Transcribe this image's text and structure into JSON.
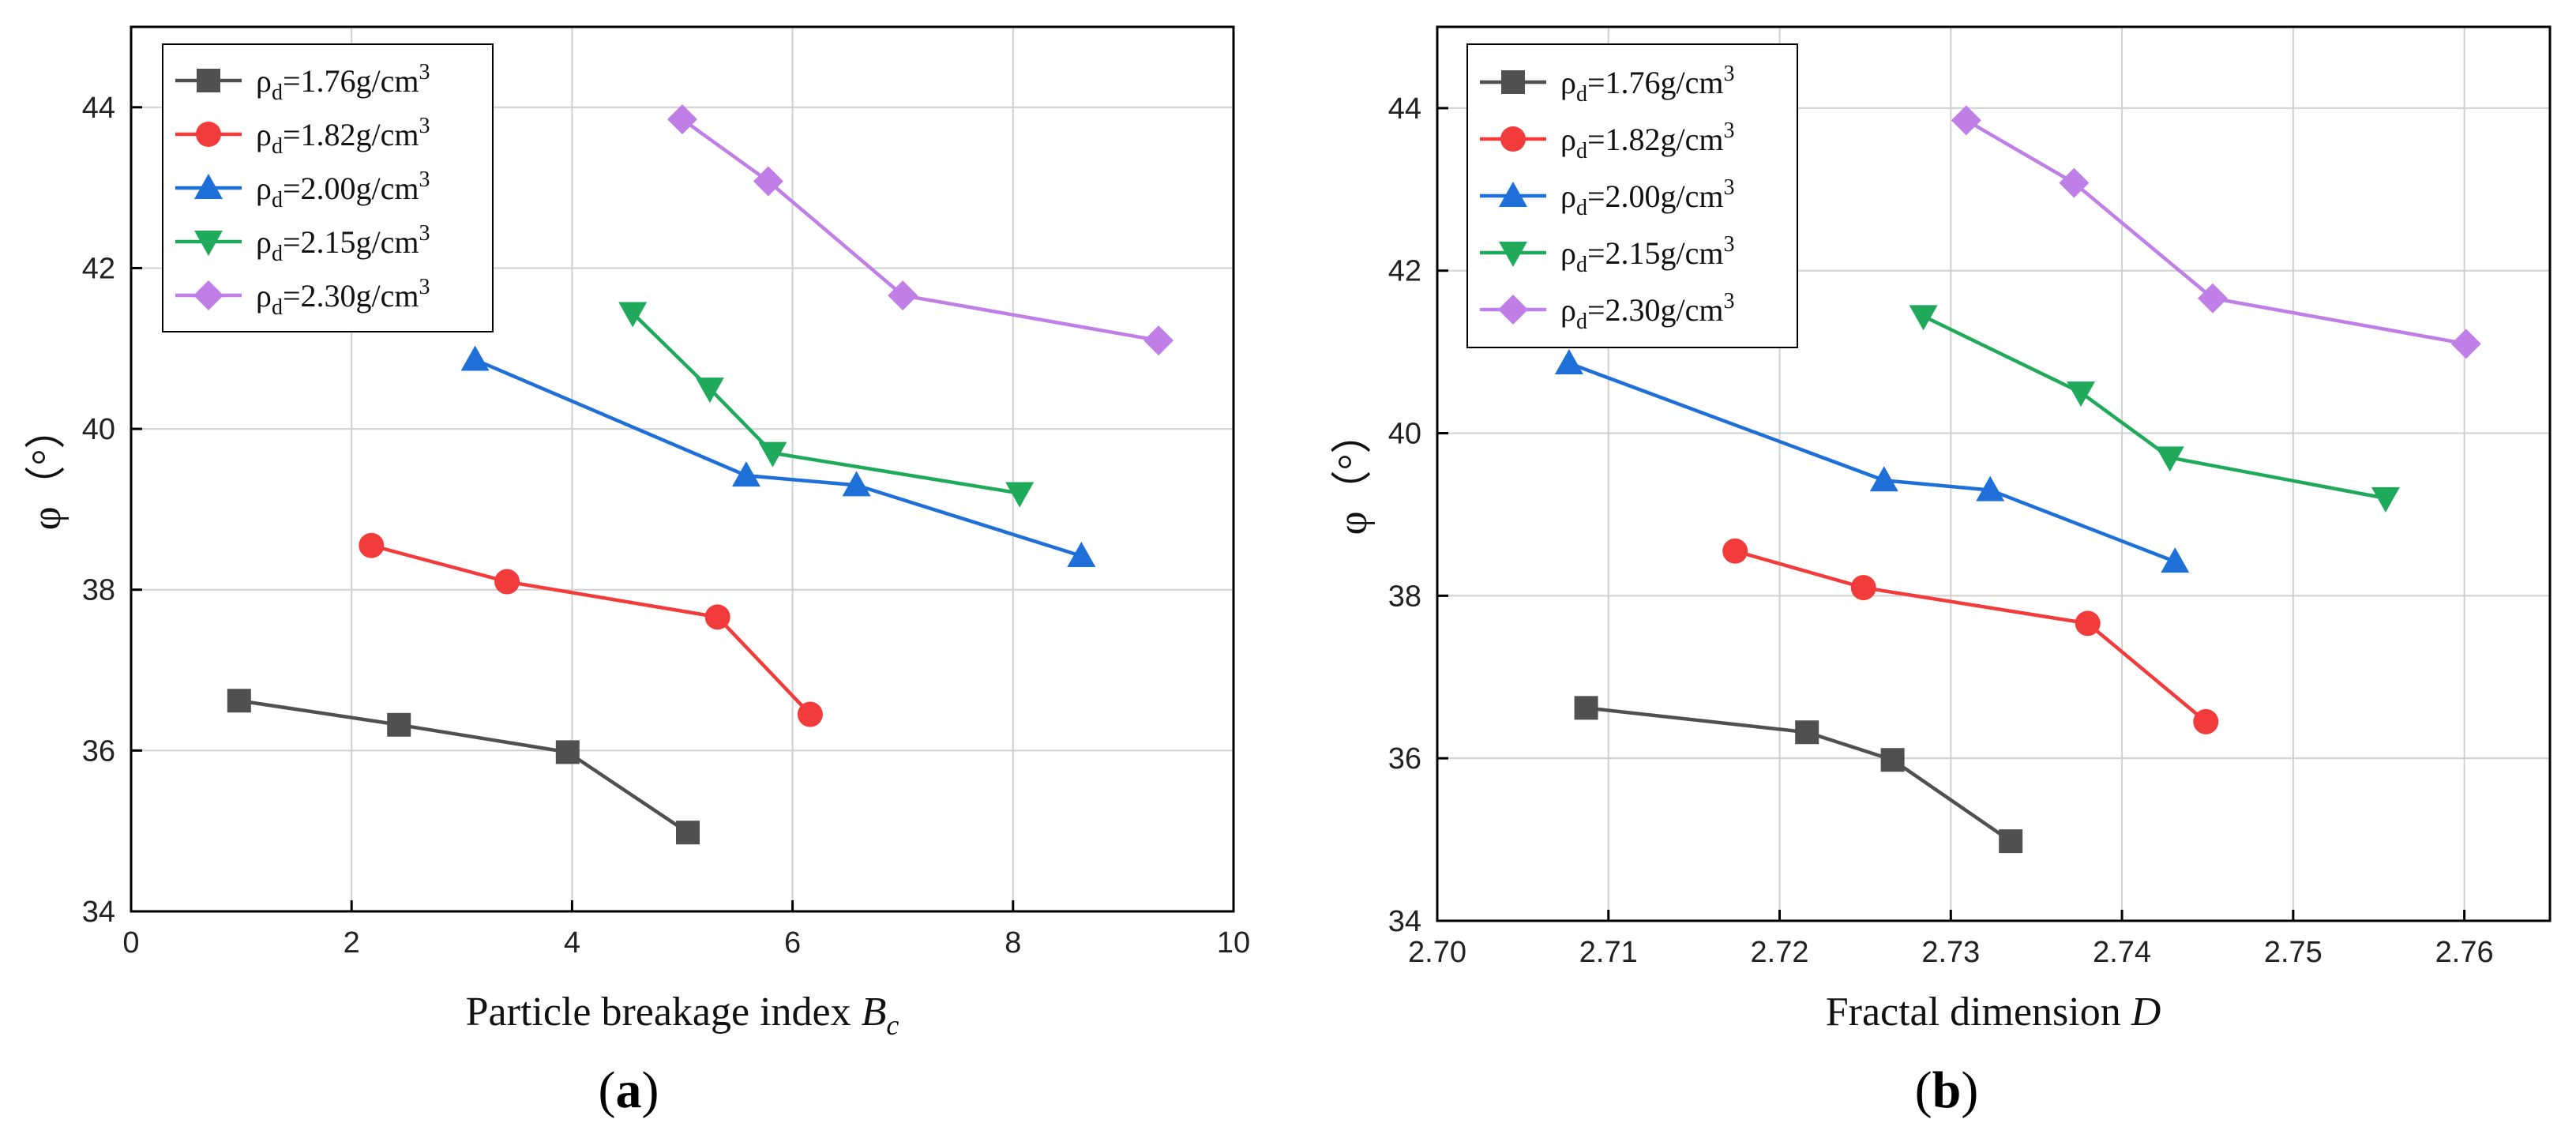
{
  "chart_data": [
    {
      "type": "line",
      "panel_label": {
        "open": "(",
        "letter": "a",
        "close": ")"
      },
      "xlabel": "Particle breakage index ",
      "xlabel_italic": "B",
      "xlabel_sub": "c",
      "ylabel": "φ（°）",
      "xlim": [
        0,
        10
      ],
      "ylim": [
        34,
        45
      ],
      "xticks": [
        0,
        2,
        4,
        6,
        8,
        10
      ],
      "yticks": [
        34,
        36,
        38,
        40,
        42,
        44
      ],
      "xtick_labels": [
        "0",
        "2",
        "4",
        "6",
        "8",
        "10"
      ],
      "ytick_labels": [
        "34",
        "36",
        "38",
        "40",
        "42",
        "44"
      ],
      "grid": true,
      "legend_position": "top-left",
      "series": [
        {
          "name": "ρd=1.76g/cm3",
          "label_main": "ρ",
          "label_sub": "d",
          "label_rest": "=1.76g/cm",
          "label_sup": "3",
          "color": "#505050",
          "marker": "square",
          "points": [
            [
              0.98,
              36.62
            ],
            [
              2.43,
              36.32
            ],
            [
              3.96,
              35.98
            ],
            [
              5.05,
              34.98
            ]
          ]
        },
        {
          "name": "ρd=1.82g/cm3",
          "label_main": "ρ",
          "label_sub": "d",
          "label_rest": "=1.82g/cm",
          "label_sup": "3",
          "color": "#f23b3b",
          "marker": "circle",
          "points": [
            [
              2.18,
              38.55
            ],
            [
              3.41,
              38.1
            ],
            [
              5.32,
              37.66
            ],
            [
              6.16,
              36.45
            ]
          ]
        },
        {
          "name": "ρd=2.00g/cm3",
          "label_main": "ρ",
          "label_sub": "d",
          "label_rest": "=2.00g/cm",
          "label_sup": "3",
          "color": "#1f6fd9",
          "marker": "triangle-up",
          "points": [
            [
              3.12,
              40.86
            ],
            [
              5.58,
              39.42
            ],
            [
              6.58,
              39.3
            ],
            [
              8.62,
              38.42
            ]
          ]
        },
        {
          "name": "ρd=2.15g/cm3",
          "label_main": "ρ",
          "label_sub": "d",
          "label_rest": "=2.15g/cm",
          "label_sup": "3",
          "color": "#1eaa5a",
          "marker": "triangle-down",
          "points": [
            [
              4.55,
              41.44
            ],
            [
              5.25,
              40.5
            ],
            [
              5.82,
              39.7
            ],
            [
              8.06,
              39.2
            ]
          ]
        },
        {
          "name": "ρd=2.30g/cm3",
          "label_main": "ρ",
          "label_sub": "d",
          "label_rest": "=2.30g/cm",
          "label_sup": "3",
          "color": "#c07fe6",
          "marker": "diamond",
          "points": [
            [
              5.0,
              43.85
            ],
            [
              5.78,
              43.08
            ],
            [
              7.0,
              41.66
            ],
            [
              9.32,
              41.1
            ]
          ]
        }
      ]
    },
    {
      "type": "line",
      "panel_label": {
        "open": "(",
        "letter": "b",
        "close": ")"
      },
      "xlabel": "Fractal dimension ",
      "xlabel_italic": "D",
      "xlabel_sub": "",
      "ylabel": "φ（°）",
      "xlim": [
        2.7,
        2.765
      ],
      "ylim": [
        34,
        45
      ],
      "xticks": [
        2.7,
        2.71,
        2.72,
        2.73,
        2.74,
        2.75,
        2.76
      ],
      "yticks": [
        34,
        36,
        38,
        40,
        42,
        44
      ],
      "xtick_labels": [
        "2.70",
        "2.71",
        "2.72",
        "2.73",
        "2.74",
        "2.75",
        "2.76"
      ],
      "ytick_labels": [
        "34",
        "36",
        "38",
        "40",
        "42",
        "44"
      ],
      "grid": true,
      "legend_position": "top-left",
      "series": [
        {
          "name": "ρd=1.76g/cm3",
          "label_main": "ρ",
          "label_sub": "d",
          "label_rest": "=1.76g/cm",
          "label_sup": "3",
          "color": "#505050",
          "marker": "square",
          "points": [
            [
              2.7087,
              36.62
            ],
            [
              2.7216,
              36.32
            ],
            [
              2.7266,
              35.98
            ],
            [
              2.7335,
              34.98
            ]
          ]
        },
        {
          "name": "ρd=1.82g/cm3",
          "label_main": "ρ",
          "label_sub": "d",
          "label_rest": "=1.82g/cm",
          "label_sup": "3",
          "color": "#f23b3b",
          "marker": "circle",
          "points": [
            [
              2.7174,
              38.55
            ],
            [
              2.7249,
              38.1
            ],
            [
              2.738,
              37.66
            ],
            [
              2.7449,
              36.45
            ]
          ]
        },
        {
          "name": "ρd=2.00g/cm3",
          "label_main": "ρ",
          "label_sub": "d",
          "label_rest": "=2.00g/cm",
          "label_sup": "3",
          "color": "#1f6fd9",
          "marker": "triangle-up",
          "points": [
            [
              2.7077,
              40.86
            ],
            [
              2.7261,
              39.42
            ],
            [
              2.7323,
              39.3
            ],
            [
              2.7431,
              38.42
            ]
          ]
        },
        {
          "name": "ρd=2.15g/cm3",
          "label_main": "ρ",
          "label_sub": "d",
          "label_rest": "=2.15g/cm",
          "label_sup": "3",
          "color": "#1eaa5a",
          "marker": "triangle-down",
          "points": [
            [
              2.7284,
              41.44
            ],
            [
              2.7376,
              40.5
            ],
            [
              2.7428,
              39.7
            ],
            [
              2.7554,
              39.2
            ]
          ]
        },
        {
          "name": "ρd=2.30g/cm3",
          "label_main": "ρ",
          "label_sub": "d",
          "label_rest": "=2.30g/cm",
          "label_sup": "3",
          "color": "#c07fe6",
          "marker": "diamond",
          "points": [
            [
              2.7309,
              43.85
            ],
            [
              2.7372,
              43.08
            ],
            [
              2.7453,
              41.66
            ],
            [
              2.7601,
              41.1
            ]
          ]
        }
      ]
    }
  ]
}
